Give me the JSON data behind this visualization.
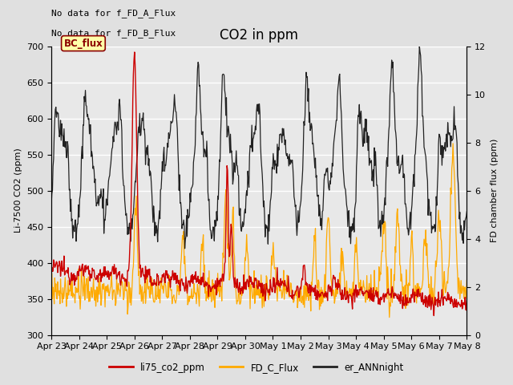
{
  "title": "CO2 in ppm",
  "ylabel_left": "Li-7500 CO2 (ppm)",
  "ylabel_right": "FD chamber flux (ppm)",
  "ylim_left": [
    300,
    700
  ],
  "ylim_right": [
    0,
    12
  ],
  "yticks_left": [
    300,
    350,
    400,
    450,
    500,
    550,
    600,
    650,
    700
  ],
  "yticks_right": [
    0,
    2,
    4,
    6,
    8,
    10,
    12
  ],
  "text_nodata1": "No data for f_FD_A_Flux",
  "text_nodata2": "No data for f_FD_B_Flux",
  "bc_flux_label": "BC_flux",
  "legend_labels": [
    "li75_co2_ppm",
    "FD_C_Flux",
    "er_ANNnight"
  ],
  "legend_colors": [
    "#cc0000",
    "#ffaa00",
    "#222222"
  ],
  "line_colors": {
    "li75": "#cc0000",
    "fd_c": "#ffaa00",
    "ann": "#222222"
  },
  "background_color": "#e0e0e0",
  "plot_bg_color": "#e8e8e8",
  "grid_color": "#ffffff",
  "title_fontsize": 12,
  "label_fontsize": 8,
  "tick_fontsize": 8,
  "n_points": 720,
  "xlim": [
    0,
    15
  ],
  "date_labels": [
    "Apr 23",
    "Apr 24",
    "Apr 25",
    "Apr 26",
    "Apr 27",
    "Apr 28",
    "Apr 29",
    "Apr 30",
    "May 1",
    "May 2",
    "May 3",
    "May 4",
    "May 5",
    "May 6",
    "May 7",
    "May 8"
  ]
}
